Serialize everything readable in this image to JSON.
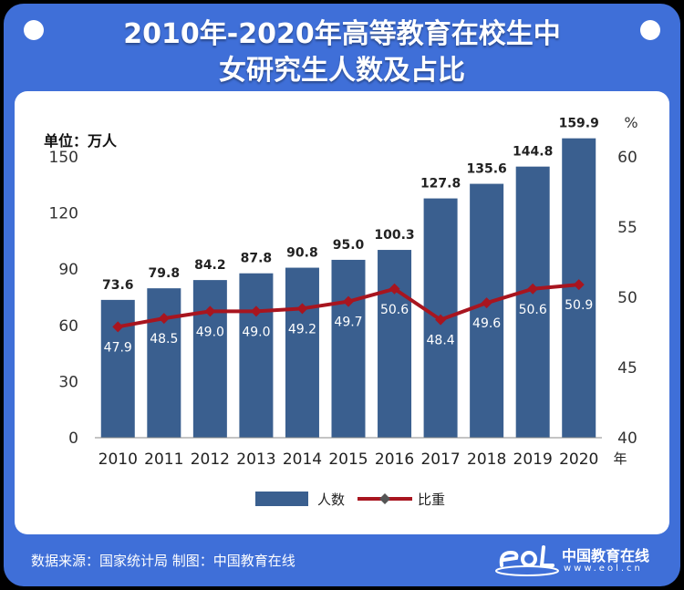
{
  "header": {
    "title_line1": "2010年-2020年高等教育在校生中",
    "title_line2": "女研究生人数及占比"
  },
  "footer": {
    "source": "数据来源：国家统计局  制图：中国教育在线",
    "logo_name": "中国教育在线",
    "logo_url": "www.eol.cn"
  },
  "colors": {
    "panel_bg": "#3f6fd8",
    "bar": "#3a5f8f",
    "line": "#a8151f",
    "marker": "#a8151f"
  },
  "icons": [
    "eol-logo-icon"
  ],
  "chart_data": {
    "type": "bar",
    "unit_label": "单位：万人",
    "categories": [
      "2010",
      "2011",
      "2012",
      "2013",
      "2014",
      "2015",
      "2016",
      "2017",
      "2018",
      "2019",
      "2020"
    ],
    "x_suffix": "年",
    "series": [
      {
        "name": "人数",
        "type": "bar",
        "axis": "left",
        "values": [
          73.6,
          79.8,
          84.2,
          87.8,
          90.8,
          95.0,
          100.3,
          127.8,
          135.6,
          144.8,
          159.9
        ],
        "labels": [
          "73.6",
          "79.8",
          "84.2",
          "87.8",
          "90.8",
          "95.0",
          "100.3",
          "127.8",
          "135.6",
          "144.8",
          "159.9"
        ]
      },
      {
        "name": "比重",
        "type": "line",
        "axis": "right",
        "values": [
          47.9,
          48.5,
          49.0,
          49.0,
          49.2,
          49.7,
          50.6,
          48.4,
          49.6,
          50.6,
          50.9
        ],
        "labels": [
          "47.9",
          "48.5",
          "49.0",
          "49.0",
          "49.2",
          "49.7",
          "50.6",
          "48.4",
          "49.6",
          "50.6",
          "50.9"
        ]
      }
    ],
    "y_left": {
      "min": 0,
      "max": 150,
      "ticks": [
        0,
        30,
        60,
        90,
        120,
        150
      ],
      "tick_labels": [
        "0",
        "30",
        "60",
        "90",
        "120",
        "150"
      ]
    },
    "y_right": {
      "min": 40,
      "max": 60,
      "ticks": [
        40,
        45,
        50,
        55,
        60
      ],
      "tick_labels": [
        "40",
        "45",
        "50",
        "55",
        "60"
      ],
      "unit": "%"
    },
    "legend": {
      "placement": "bottom-center",
      "items": [
        "人数",
        "比重"
      ]
    },
    "grid": false
  }
}
